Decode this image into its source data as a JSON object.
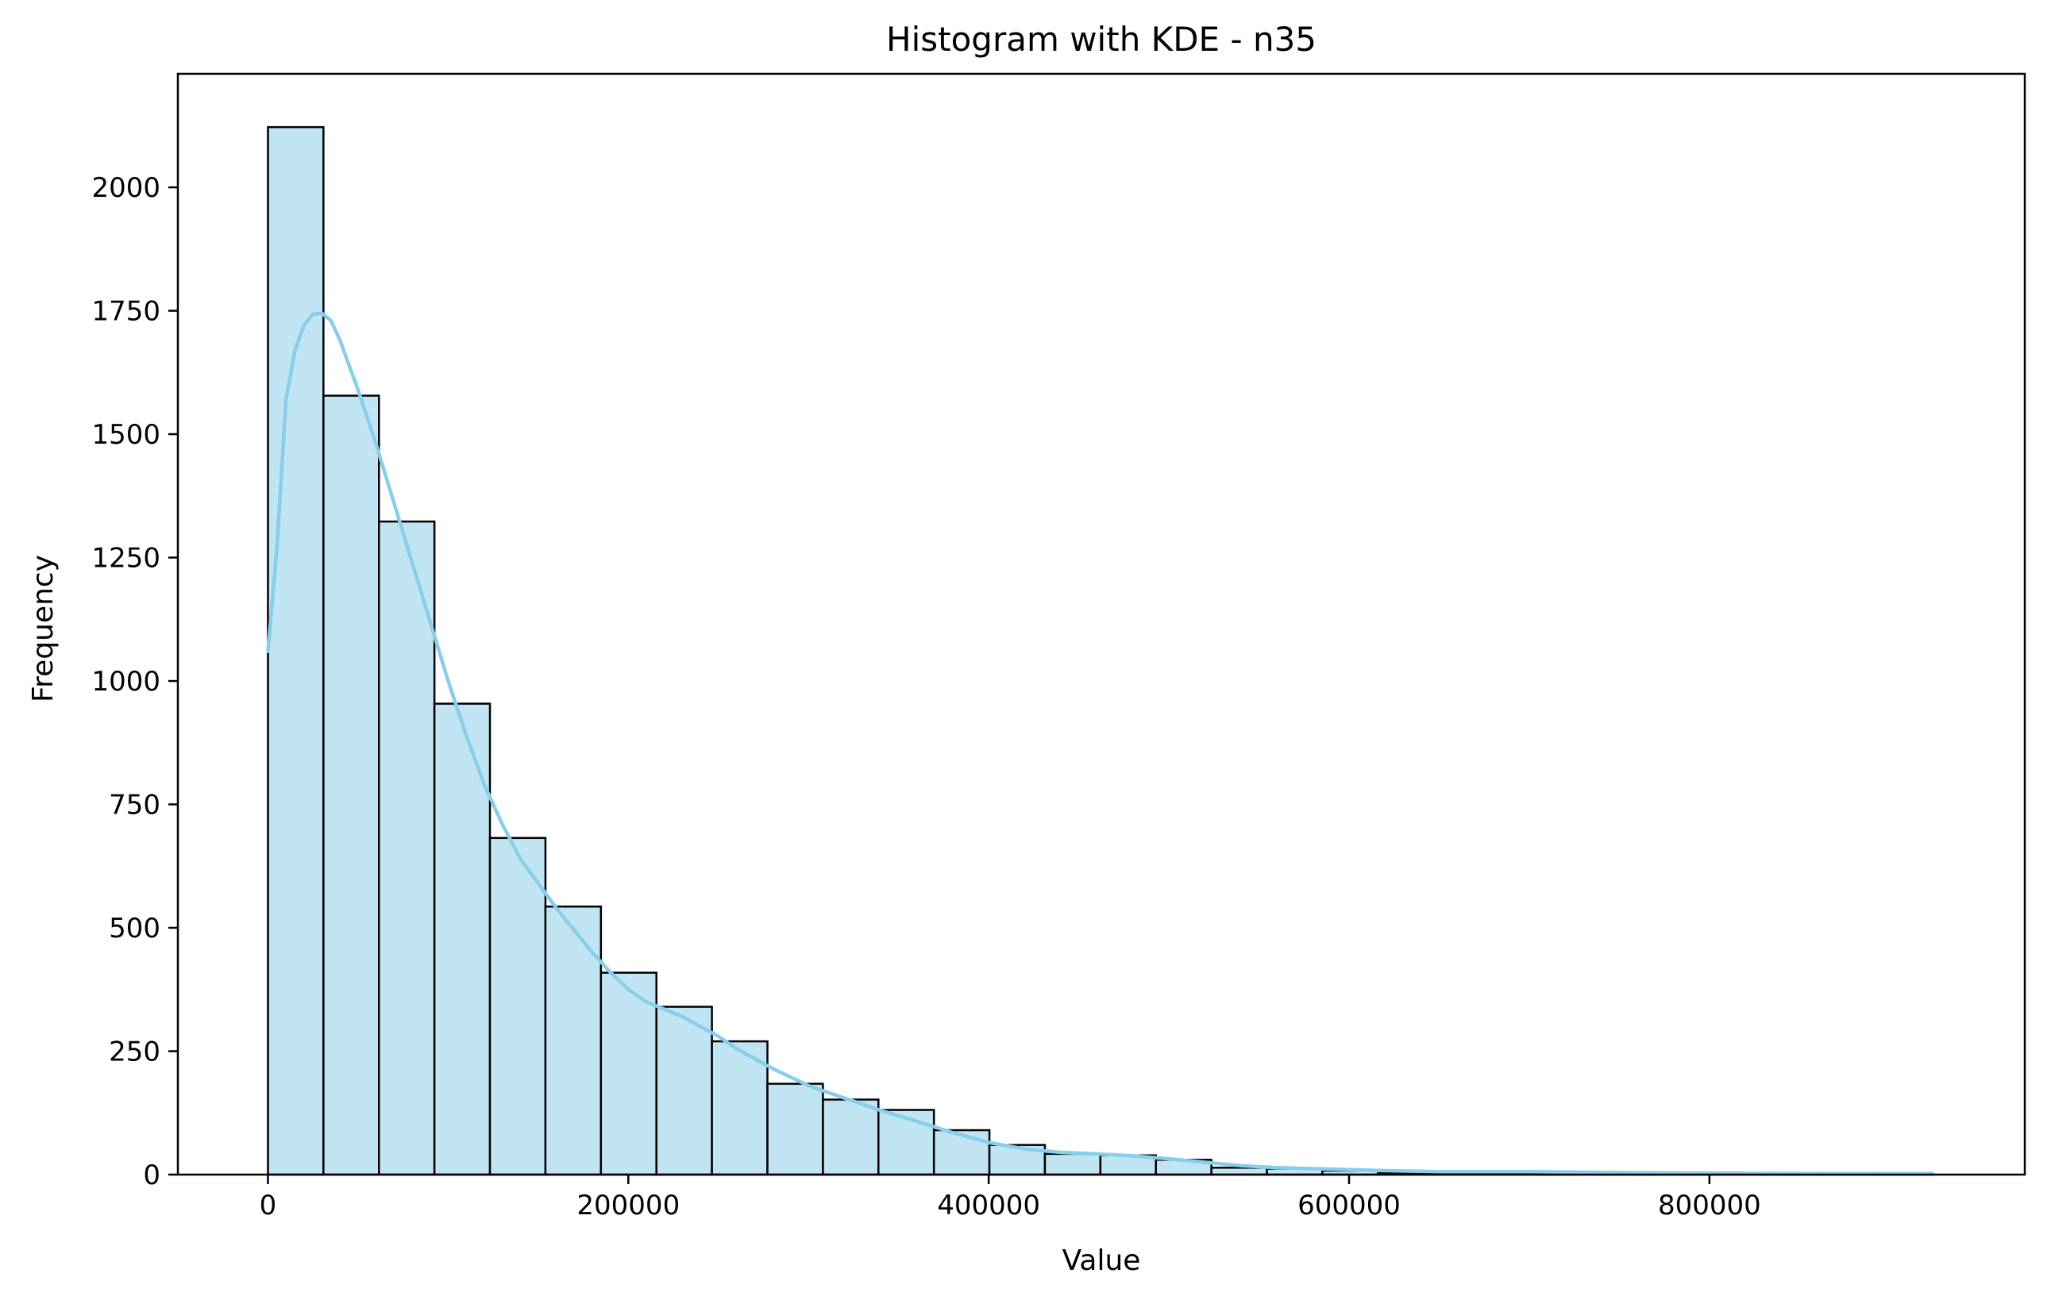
{
  "chart_data": {
    "type": "bar",
    "title": "Histogram with KDE - n35",
    "xlabel": "Value",
    "ylabel": "Frequency",
    "xlim": [
      -50000,
      975000
    ],
    "ylim": [
      0,
      2230
    ],
    "grid": false,
    "bar_color": "#c0e4f2",
    "bar_edge_color": "#000000",
    "kde_color": "#87ceeb",
    "x_ticks": [
      0,
      200000,
      400000,
      600000,
      800000
    ],
    "x_tick_labels": [
      "0",
      "200000",
      "400000",
      "600000",
      "800000"
    ],
    "y_ticks": [
      0,
      250,
      500,
      750,
      1000,
      1250,
      1500,
      1750,
      2000
    ],
    "y_tick_labels": [
      "0",
      "250",
      "500",
      "750",
      "1000",
      "1250",
      "1500",
      "1750",
      "2000"
    ],
    "bin_edges": [
      0,
      30800,
      61600,
      92400,
      123200,
      154000,
      184800,
      215600,
      246400,
      277200,
      308000,
      338800,
      369600,
      400400,
      431200,
      462000,
      492800,
      523600,
      554400,
      585200,
      616000,
      646800,
      677600,
      708400,
      739200,
      770000,
      800800,
      831600,
      862400,
      893200,
      924000
    ],
    "counts": [
      2122,
      1578,
      1323,
      954,
      682,
      543,
      409,
      340,
      270,
      184,
      152,
      131,
      90,
      60,
      42,
      39,
      30,
      14,
      12,
      8,
      4,
      3,
      4,
      6,
      2,
      2,
      1,
      1,
      1,
      1
    ],
    "kde": {
      "x": [
        0,
        5000,
        10000,
        15000,
        20000,
        25000,
        30000,
        35000,
        40000,
        50000,
        60000,
        70000,
        80000,
        90000,
        100000,
        110000,
        120000,
        130000,
        140000,
        150000,
        160000,
        170000,
        180000,
        190000,
        200000,
        210000,
        220000,
        230000,
        240000,
        250000,
        260000,
        280000,
        300000,
        320000,
        340000,
        360000,
        380000,
        400000,
        420000,
        440000,
        460000,
        480000,
        500000,
        520000,
        540000,
        560000,
        580000,
        600000,
        620000,
        650000,
        700000,
        750000,
        800000,
        850000,
        924000
      ],
      "y": [
        1060,
        1270,
        1570,
        1670,
        1720,
        1743,
        1745,
        1730,
        1690,
        1590,
        1480,
        1360,
        1240,
        1120,
        1000,
        890,
        790,
        710,
        640,
        590,
        540,
        495,
        450,
        410,
        375,
        350,
        335,
        320,
        300,
        280,
        255,
        215,
        180,
        155,
        130,
        108,
        85,
        65,
        52,
        45,
        42,
        38,
        32,
        25,
        18,
        14,
        12,
        10,
        8,
        6,
        6,
        4,
        3,
        2,
        2
      ]
    }
  }
}
